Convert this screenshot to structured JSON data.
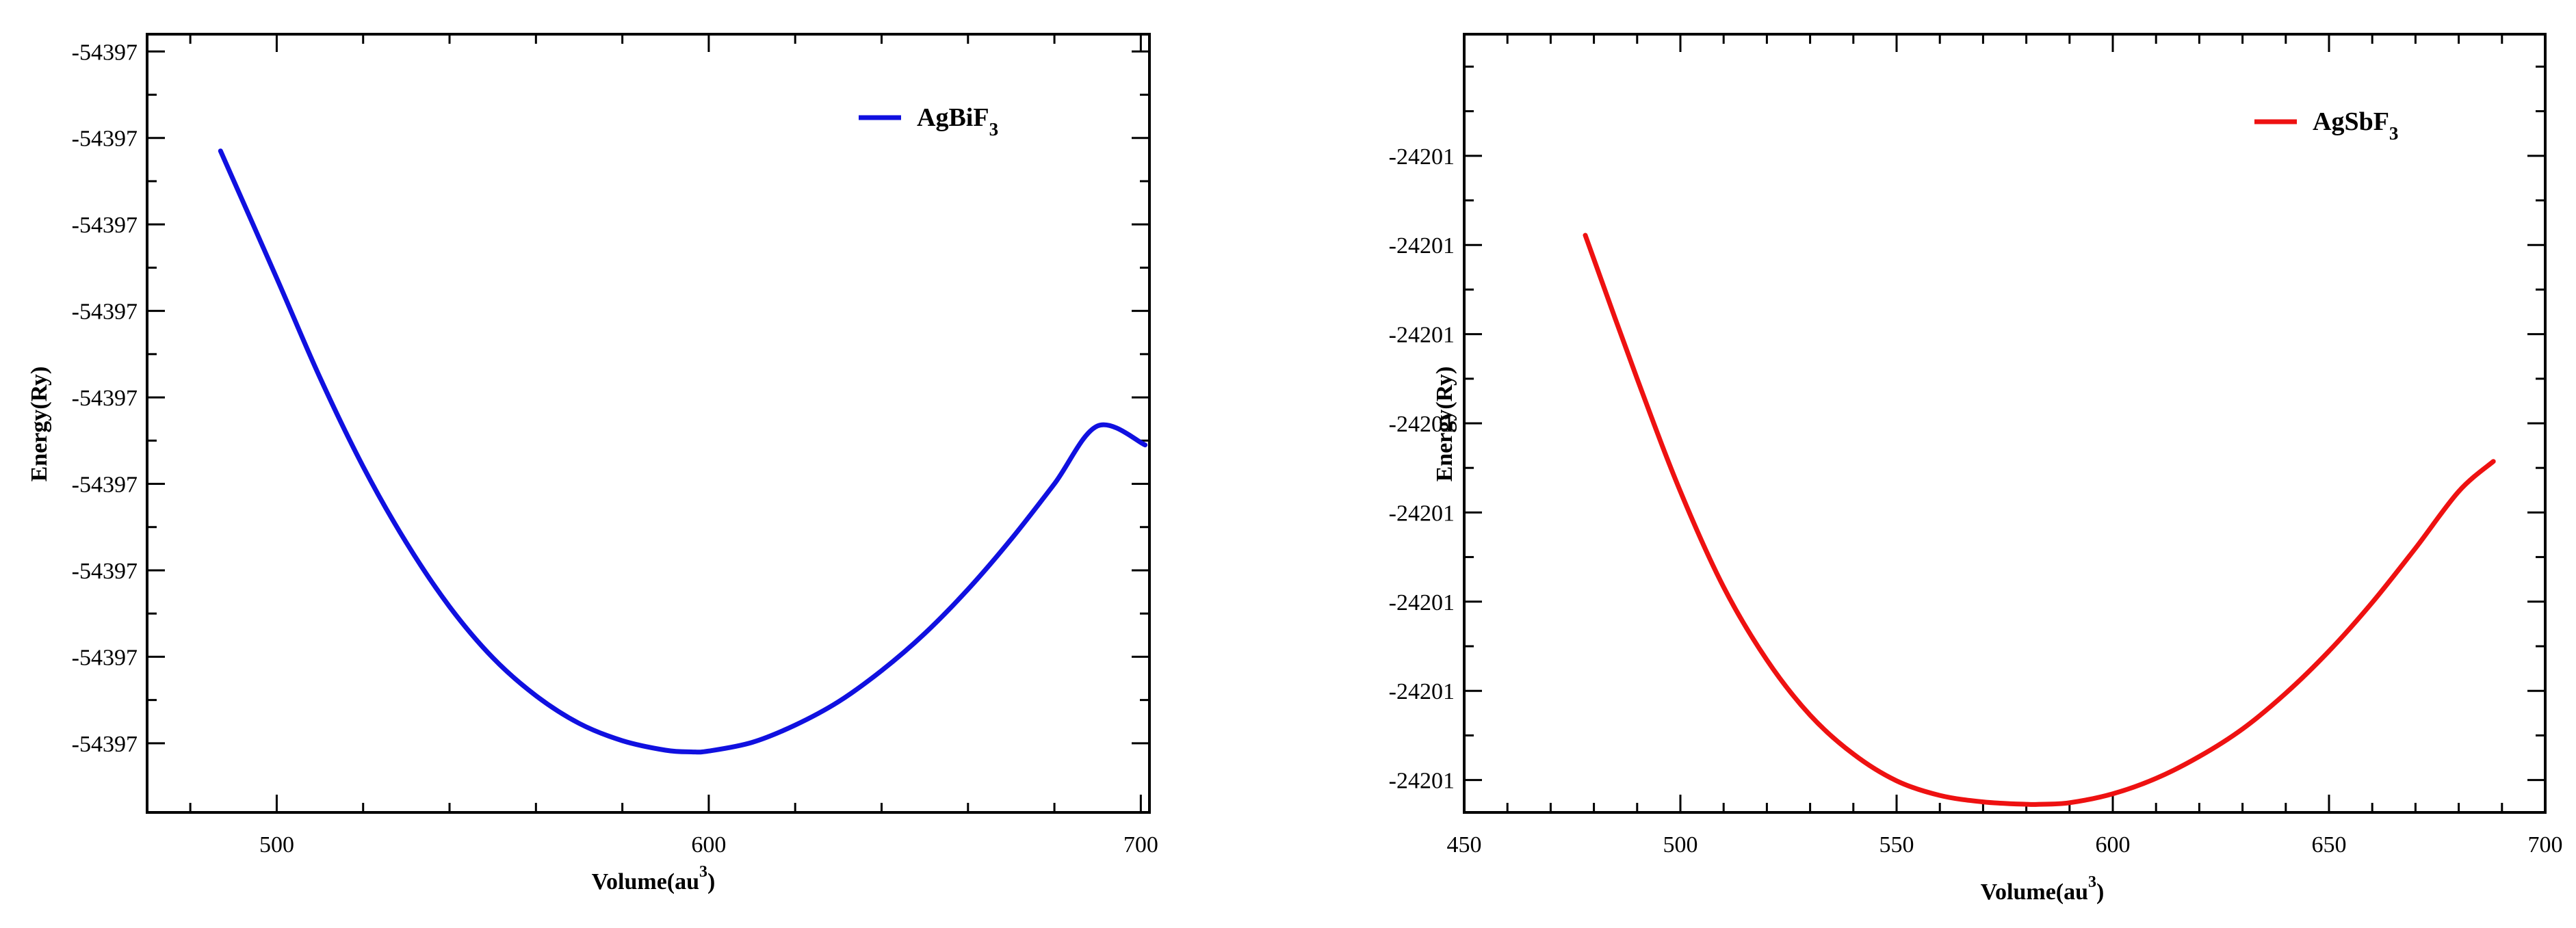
{
  "chart_data": [
    {
      "type": "line",
      "title": "",
      "xlabel": "Volume(au",
      "xlabel_sup": "3",
      "xlabel_suffix": ")",
      "ylabel": "Energy(Ry)",
      "xlim": [
        470,
        702
      ],
      "ylim": [
        -54397.0088,
        -54396.9998
      ],
      "xticks": [
        500,
        600,
        700
      ],
      "xtick_labels": [
        "500",
        "600",
        "700"
      ],
      "yticks": [
        -54397.0,
        -54397.001,
        -54397.002,
        -54397.003,
        -54397.004,
        -54397.005,
        -54397.006,
        -54397.007,
        -54397.008
      ],
      "ytick_labels": [
        "-54397",
        "-54397",
        "-54397",
        "-54397",
        "-54397",
        "-54397",
        "-54397",
        "-54397",
        "-54397"
      ],
      "legend_position": "top-right",
      "series": [
        {
          "name": "AgBiF",
          "name_sub": "3",
          "color": "#1010e0",
          "x": [
            487,
            500,
            510,
            520,
            530,
            540,
            550,
            560,
            570,
            580,
            590,
            596,
            600,
            610,
            620,
            630,
            640,
            650,
            660,
            670,
            680,
            690,
            701
          ],
          "y": [
            -54397.00115,
            -54397.00262,
            -54397.00377,
            -54397.0048,
            -54397.00568,
            -54397.00642,
            -54397.00701,
            -54397.00745,
            -54397.00777,
            -54397.00797,
            -54397.00808,
            -54397.0081,
            -54397.00809,
            -54397.00799,
            -54397.00779,
            -54397.00752,
            -54397.00716,
            -54397.00673,
            -54397.00622,
            -54397.00564,
            -54397.005,
            -54397.00433,
            -54397.00455
          ]
        }
      ]
    },
    {
      "type": "line",
      "title": "",
      "xlabel": "Volume(au",
      "xlabel_sup": "3",
      "xlabel_suffix": ")",
      "ylabel": "Energy(Ry)",
      "xlim": [
        450,
        700
      ],
      "ylim": [
        -24201.0081,
        -24200.9985
      ],
      "xticks": [
        450,
        500,
        550,
        600,
        650,
        700
      ],
      "xtick_labels": [
        "450",
        "500",
        "550",
        "600",
        "650",
        "700"
      ],
      "yticks": [
        -24201.0,
        -24201.0011,
        -24201.0022,
        -24201.0033,
        -24201.0044,
        -24201.0055,
        -24201.0066,
        -24201.0077
      ],
      "ytick_labels": [
        "-24201",
        "-24201",
        "-24201",
        "-24201",
        "-24201",
        "-24201",
        "-24201",
        "-24201"
      ],
      "legend_position": "top-right",
      "series": [
        {
          "name": "AgSbF",
          "name_sub": "3",
          "color": "#ee1111",
          "x": [
            478,
            490,
            500,
            510,
            520,
            530,
            540,
            550,
            560,
            570,
            580,
            583,
            590,
            600,
            610,
            620,
            630,
            640,
            650,
            660,
            670,
            680,
            688
          ],
          "y": [
            -24201.00098,
            -24201.00275,
            -24201.00414,
            -24201.00532,
            -24201.00622,
            -24201.0069,
            -24201.00738,
            -24201.00771,
            -24201.00789,
            -24201.00797,
            -24201.008,
            -24201.008,
            -24201.00798,
            -24201.00787,
            -24201.00768,
            -24201.00741,
            -24201.00707,
            -24201.00663,
            -24201.00611,
            -24201.00551,
            -24201.00484,
            -24201.00414,
            -24201.00377
          ]
        }
      ]
    }
  ]
}
